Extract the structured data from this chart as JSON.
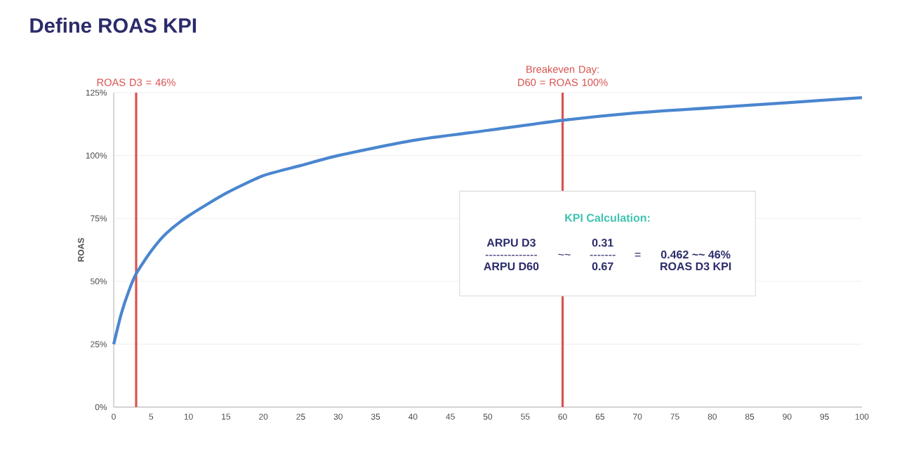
{
  "chart_data": {
    "type": "line",
    "title": "Define ROAS KPI",
    "ylabel": "ROAS",
    "x": [
      0,
      1,
      2,
      3,
      5,
      7,
      10,
      15,
      20,
      25,
      30,
      40,
      50,
      60,
      70,
      80,
      90,
      100
    ],
    "series": [
      {
        "color": "#4a86cf",
        "values": [
          25,
          37,
          46,
          53,
          62,
          69,
          76,
          85,
          92,
          96,
          100,
          106,
          110,
          114,
          117,
          119,
          121,
          123
        ]
      }
    ],
    "xlim": [
      0,
      100
    ],
    "xticks": [
      0,
      5,
      10,
      15,
      20,
      25,
      30,
      35,
      40,
      45,
      50,
      55,
      60,
      65,
      70,
      75,
      80,
      85,
      90,
      95,
      100
    ],
    "ylim": [
      0,
      125
    ],
    "yticks": [
      {
        "value": 0,
        "label": "0%"
      },
      {
        "value": 25,
        "label": "25%"
      },
      {
        "value": 50,
        "label": "50%"
      },
      {
        "value": 75,
        "label": "75%"
      },
      {
        "value": 100,
        "label": "100%"
      },
      {
        "value": 125,
        "label": "125%"
      }
    ],
    "grid": "y",
    "marker": "none",
    "line_style": "solid",
    "ref_lines": [
      {
        "axis": "x",
        "value": 3,
        "label": "ROAS D3 = 46%",
        "color": "#d9534f"
      },
      {
        "axis": "x",
        "value": 60,
        "label": "Breakeven Day: D60 = ROAS 100%",
        "color": "#d9534f"
      }
    ],
    "annotations": [
      "KPI Calculation:",
      "ARPU D3",
      "--------------",
      "ARPU D60",
      "~~",
      "0.31",
      "-------",
      "0.67",
      "=",
      "0.462 ~~ 46%",
      "ROAS D3 KPI"
    ]
  }
}
